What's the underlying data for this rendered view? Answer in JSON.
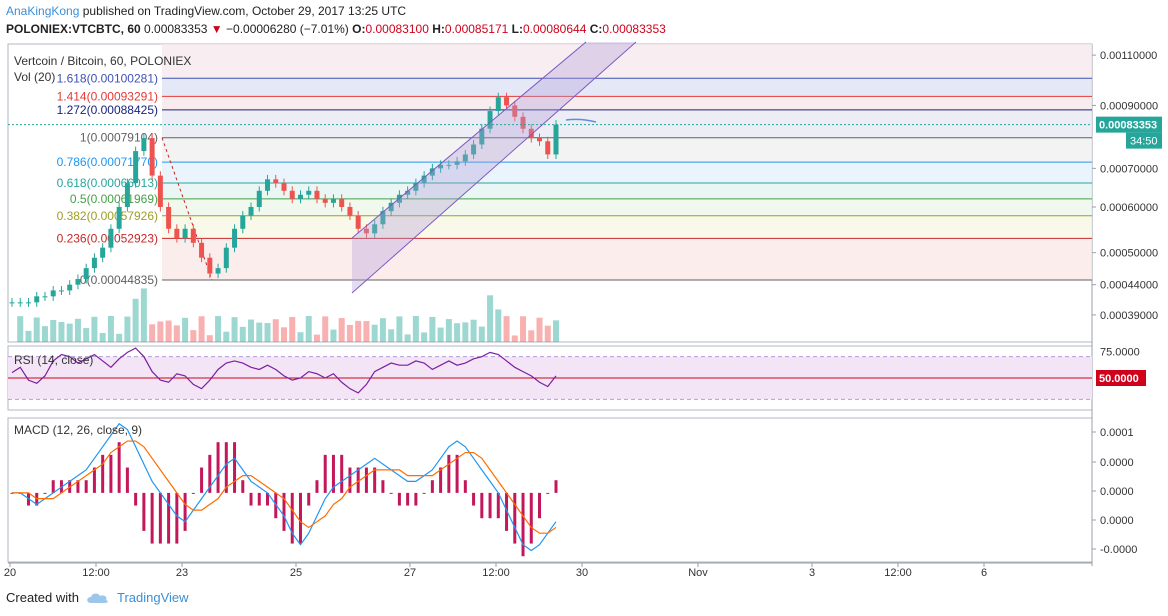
{
  "header": {
    "author": "AnaKingKong",
    "published_text": "published on TradingView.com, October 29, 2017 13:25 UTC",
    "symbol": "POLONIEX:VTCBTC, 60",
    "price": "0.00083353",
    "change": "−0.00006280 (−7.01%)",
    "o_label": "O:",
    "o": "0.00083100",
    "h_label": "H:",
    "h": "0.00085171",
    "l_label": "L:",
    "l": "0.00080644",
    "c_label": "C:",
    "c": "0.00083353"
  },
  "legend": {
    "title": "Vertcoin / Bitcoin, 60, POLONIEX",
    "vol": "Vol (20)",
    "rsi": "RSI (14, close)",
    "macd": "MACD (12, 26, close, 9)"
  },
  "footer": {
    "created_with": "Created with",
    "brand": "TradingView"
  },
  "colors": {
    "up": "#26a69a",
    "down": "#ef5350",
    "rsi": "#7b1fa2",
    "macd": "#2196f3",
    "signal": "#ff6d00",
    "hist": "#c2185b",
    "channel": "#7e57c2"
  },
  "chart_data": [
    {
      "type": "candlestick",
      "title": "Vertcoin / Bitcoin, 60, POLONIEX",
      "x_ticks": [
        "20",
        "12:00",
        "23",
        "25",
        "27",
        "12:00",
        "30",
        "Nov",
        "3",
        "12:00",
        "6"
      ],
      "y_ticks": [
        "0.00110000",
        "0.00090000",
        "0.00070000",
        "0.00060000",
        "0.00050000",
        "0.00044000",
        "0.00039000"
      ],
      "ylim": [
        0.00035,
        0.00115
      ],
      "log_scale": true,
      "last_price_label": "0.00083353",
      "countdown_label": "34:50",
      "fib_levels": [
        {
          "label": "1.618(0.00100281)",
          "value": 0.00100281,
          "color": "#3f51b5"
        },
        {
          "label": "1.414(0.00093291)",
          "value": 0.00093291,
          "color": "#e53935"
        },
        {
          "label": "1.272(0.00088425)",
          "value": 0.00088425,
          "color": "#1a237e"
        },
        {
          "label": "1(0.00079104)",
          "value": 0.00079104,
          "color": "#616161"
        },
        {
          "label": "0.786(0.00071770)",
          "value": 0.0007177,
          "color": "#2196f3"
        },
        {
          "label": "0.618(0.00066013)",
          "value": 0.00066013,
          "color": "#26a69a"
        },
        {
          "label": "0.5(0.00061969)",
          "value": 0.00061969,
          "color": "#43a047"
        },
        {
          "label": "0.382(0.00057926)",
          "value": 0.00057926,
          "color": "#9e9d24"
        },
        {
          "label": "0.236(0.00052923)",
          "value": 0.00052923,
          "color": "#c62828"
        },
        {
          "label": "0(0.00044835)",
          "value": 0.00044835,
          "color": "#616161"
        }
      ],
      "closes": [
        0.00041,
        0.00041,
        0.00041,
        0.00042,
        0.00042,
        0.00043,
        0.00043,
        0.00044,
        0.00045,
        0.00047,
        0.00049,
        0.00051,
        0.00055,
        0.0006,
        0.00066,
        0.00075,
        0.00079,
        0.00068,
        0.0006,
        0.00055,
        0.00053,
        0.00055,
        0.00052,
        0.00049,
        0.00046,
        0.00047,
        0.00051,
        0.00055,
        0.00058,
        0.0006,
        0.00064,
        0.00067,
        0.00066,
        0.00064,
        0.00062,
        0.00063,
        0.00064,
        0.00062,
        0.00061,
        0.00062,
        0.0006,
        0.00058,
        0.00055,
        0.00054,
        0.00056,
        0.00059,
        0.00061,
        0.00063,
        0.00064,
        0.00066,
        0.00068,
        0.0007,
        0.00071,
        0.00071,
        0.00072,
        0.00074,
        0.00077,
        0.00082,
        0.00088,
        0.00093,
        0.0009,
        0.00086,
        0.00082,
        0.00079,
        0.00078,
        0.00074,
        0.00083353
      ]
    },
    {
      "type": "line",
      "title": "RSI (14, close)",
      "y_ticks": [
        "75.0000"
      ],
      "level_label": "50.0000",
      "ylim": [
        20,
        80
      ],
      "values": [
        55,
        60,
        48,
        45,
        52,
        66,
        72,
        70,
        64,
        68,
        72,
        66,
        60,
        68,
        74,
        78,
        70,
        56,
        48,
        46,
        54,
        52,
        44,
        40,
        48,
        58,
        64,
        66,
        64,
        60,
        58,
        62,
        58,
        52,
        48,
        50,
        56,
        54,
        50,
        54,
        46,
        40,
        36,
        44,
        56,
        60,
        64,
        62,
        62,
        66,
        64,
        58,
        62,
        66,
        62,
        64,
        68,
        70,
        74,
        72,
        66,
        60,
        56,
        52,
        46,
        42,
        52
      ]
    },
    {
      "type": "line",
      "title": "MACD (12, 26, close, 9)",
      "y_ticks": [
        "0.0001",
        "0.0000",
        "0.0000",
        "0.0000",
        "-0.0000"
      ],
      "ylim": [
        -0.00012,
        0.00013
      ],
      "series": [
        {
          "values": [
            0,
            0,
            -1e-05,
            -2e-05,
            -1e-05,
            0,
            1e-05,
            2e-05,
            3e-05,
            4e-05,
            6e-05,
            8e-05,
            0.0001,
            0.00012,
            0.00011,
            8e-05,
            5e-05,
            2e-05,
            0,
            -2e-05,
            -4e-05,
            -5e-05,
            -3e-05,
            -1e-05,
            1e-05,
            3e-05,
            5e-05,
            6e-05,
            4e-05,
            2e-05,
            1e-05,
            0,
            -2e-05,
            -4e-05,
            -7e-05,
            -9e-05,
            -7e-05,
            -4e-05,
            -1e-05,
            1e-05,
            2e-05,
            3e-05,
            4e-05,
            5e-05,
            6e-05,
            5e-05,
            4e-05,
            3e-05,
            2e-05,
            2e-05,
            3e-05,
            4e-05,
            6e-05,
            8e-05,
            9e-05,
            8e-05,
            6e-05,
            4e-05,
            2e-05,
            0,
            -3e-05,
            -6e-05,
            -9e-05,
            -0.0001,
            -9e-05,
            -7e-05,
            -5e-05
          ]
        },
        {
          "values": [
            0,
            0,
            0,
            -1e-05,
            -1e-05,
            -1e-05,
            0,
            1e-05,
            2e-05,
            3e-05,
            4e-05,
            5e-05,
            7e-05,
            8e-05,
            9e-05,
            9e-05,
            8e-05,
            6e-05,
            4e-05,
            2e-05,
            0,
            -2e-05,
            -3e-05,
            -3e-05,
            -2e-05,
            -1e-05,
            1e-05,
            2e-05,
            3e-05,
            3e-05,
            2e-05,
            1e-05,
            0,
            -1e-05,
            -3e-05,
            -5e-05,
            -6e-05,
            -5e-05,
            -4e-05,
            -2e-05,
            -1e-05,
            1e-05,
            2e-05,
            3e-05,
            4e-05,
            4e-05,
            4e-05,
            4e-05,
            3e-05,
            3e-05,
            3e-05,
            3e-05,
            4e-05,
            5e-05,
            6e-05,
            7e-05,
            7e-05,
            6e-05,
            4e-05,
            2e-05,
            0,
            -2e-05,
            -4e-05,
            -6e-05,
            -7e-05,
            -7e-05,
            -6e-05
          ]
        }
      ]
    }
  ]
}
